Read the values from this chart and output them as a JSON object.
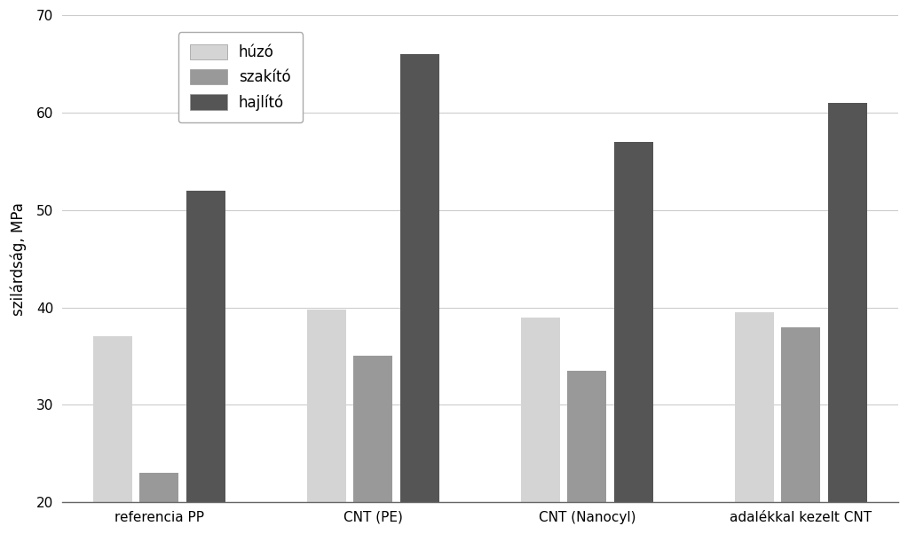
{
  "categories": [
    "referencia PP",
    "CNT (PE)",
    "CNT (Nanocyl)",
    "adalékkal kezelt CNT"
  ],
  "series": {
    "húzó": [
      37.0,
      39.8,
      39.0,
      39.5
    ],
    "szakító": [
      23.0,
      35.0,
      33.5,
      38.0
    ],
    "hajlító": [
      52.0,
      66.0,
      57.0,
      61.0
    ]
  },
  "colors": {
    "húzó": "#d4d4d4",
    "szakító": "#999999",
    "hajlító": "#555555"
  },
  "ylabel": "szilárdság, MPa",
  "ylim": [
    20,
    70
  ],
  "yticks": [
    20,
    30,
    40,
    50,
    60,
    70
  ],
  "bar_width": 0.2,
  "bar_gap": 0.04,
  "background_color": "#ffffff",
  "grid_color": "#cccccc",
  "legend_labels": [
    "húzó",
    "szakító",
    "hajlító"
  ],
  "axis_fontsize": 12,
  "tick_fontsize": 11,
  "legend_fontsize": 12
}
